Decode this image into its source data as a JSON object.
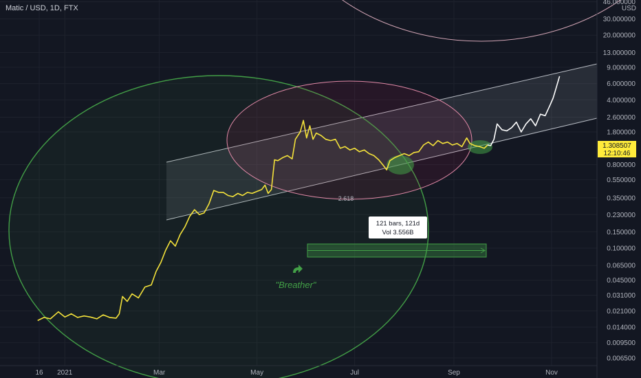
{
  "chart_data": {
    "type": "line",
    "title": "Matic / USD, 1D, FTX",
    "currency": "USD",
    "y_scale": "log",
    "ylim": [
      0.0055,
      55
    ],
    "y_ticks": [
      "46.000000",
      "30.000000",
      "20.000000",
      "13.000000",
      "9.000000",
      "6.000000",
      "4.000000",
      "2.600000",
      "1.800000",
      "0.800000",
      "0.550000",
      "0.350000",
      "0.230000",
      "0.150000",
      "0.100000",
      "0.065000",
      "0.045000",
      "0.031000",
      "0.021000",
      "0.014000",
      "0.009500",
      "0.006500"
    ],
    "x_ticks": [
      "16",
      "2021",
      "Mar",
      "May",
      "Jul",
      "Sep",
      "Nov"
    ],
    "last_price": {
      "value": "1.308507",
      "time": "12:10:46"
    },
    "colors": {
      "line_main": "#f5e33b",
      "line_recent": "#ffffff",
      "accent_green": "#43a047",
      "pink": "#e91e63",
      "label_bg": "#ffeb3b"
    },
    "series": [
      {
        "color": "#f5e33b",
        "points": [
          [
            "2020-12-15",
            0.0165
          ],
          [
            "2020-12-19",
            0.0178
          ],
          [
            "2020-12-23",
            0.0172
          ],
          [
            "2020-12-28",
            0.0205
          ],
          [
            "2021-01-01",
            0.018
          ],
          [
            "2021-01-05",
            0.0195
          ],
          [
            "2021-01-09",
            0.0178
          ],
          [
            "2021-01-13",
            0.0185
          ],
          [
            "2021-01-17",
            0.018
          ],
          [
            "2021-01-21",
            0.0172
          ],
          [
            "2021-01-25",
            0.019
          ],
          [
            "2021-01-29",
            0.0178
          ],
          [
            "2021-02-02",
            0.0175
          ],
          [
            "2021-02-04",
            0.0195
          ],
          [
            "2021-02-06",
            0.03
          ],
          [
            "2021-02-09",
            0.0265
          ],
          [
            "2021-02-12",
            0.032
          ],
          [
            "2021-02-16",
            0.029
          ],
          [
            "2021-02-20",
            0.038
          ],
          [
            "2021-02-24",
            0.04
          ],
          [
            "2021-02-27",
            0.056
          ],
          [
            "2021-03-02",
            0.07
          ],
          [
            "2021-03-05",
            0.095
          ],
          [
            "2021-03-08",
            0.12
          ],
          [
            "2021-03-11",
            0.105
          ],
          [
            "2021-03-14",
            0.14
          ],
          [
            "2021-03-17",
            0.17
          ],
          [
            "2021-03-20",
            0.22
          ],
          [
            "2021-03-23",
            0.26
          ],
          [
            "2021-03-26",
            0.23
          ],
          [
            "2021-03-29",
            0.24
          ],
          [
            "2021-04-01",
            0.3
          ],
          [
            "2021-04-04",
            0.42
          ],
          [
            "2021-04-07",
            0.4
          ],
          [
            "2021-04-10",
            0.4
          ],
          [
            "2021-04-13",
            0.37
          ],
          [
            "2021-04-16",
            0.36
          ],
          [
            "2021-04-19",
            0.39
          ],
          [
            "2021-04-22",
            0.37
          ],
          [
            "2021-04-25",
            0.4
          ],
          [
            "2021-04-28",
            0.39
          ],
          [
            "2021-05-01",
            0.41
          ],
          [
            "2021-05-04",
            0.43
          ],
          [
            "2021-05-06",
            0.48
          ],
          [
            "2021-05-08",
            0.39
          ],
          [
            "2021-05-10",
            0.43
          ],
          [
            "2021-05-12",
            0.9
          ],
          [
            "2021-05-14",
            0.88
          ],
          [
            "2021-05-17",
            0.95
          ],
          [
            "2021-05-20",
            1.0
          ],
          [
            "2021-05-23",
            0.92
          ],
          [
            "2021-05-25",
            1.5
          ],
          [
            "2021-05-28",
            1.8
          ],
          [
            "2021-05-30",
            2.4
          ],
          [
            "2021-06-01",
            1.55
          ],
          [
            "2021-06-03",
            2.1
          ],
          [
            "2021-06-05",
            1.5
          ],
          [
            "2021-06-07",
            1.75
          ],
          [
            "2021-06-10",
            1.65
          ],
          [
            "2021-06-13",
            1.5
          ],
          [
            "2021-06-16",
            1.45
          ],
          [
            "2021-06-19",
            1.5
          ],
          [
            "2021-06-22",
            1.2
          ],
          [
            "2021-06-25",
            1.25
          ],
          [
            "2021-06-28",
            1.15
          ],
          [
            "2021-07-01",
            1.2
          ],
          [
            "2021-07-04",
            1.1
          ],
          [
            "2021-07-07",
            1.15
          ],
          [
            "2021-07-10",
            1.05
          ],
          [
            "2021-07-13",
            1.0
          ],
          [
            "2021-07-16",
            0.9
          ],
          [
            "2021-07-19",
            0.78
          ],
          [
            "2021-07-21",
            0.7
          ],
          [
            "2021-07-23",
            0.88
          ],
          [
            "2021-07-26",
            0.95
          ],
          [
            "2021-07-29",
            1.0
          ],
          [
            "2021-08-01",
            1.05
          ],
          [
            "2021-08-04",
            1.0
          ],
          [
            "2021-08-07",
            1.08
          ],
          [
            "2021-08-10",
            1.1
          ],
          [
            "2021-08-13",
            1.3
          ],
          [
            "2021-08-16",
            1.4
          ],
          [
            "2021-08-19",
            1.28
          ],
          [
            "2021-08-22",
            1.45
          ],
          [
            "2021-08-25",
            1.35
          ],
          [
            "2021-08-28",
            1.4
          ],
          [
            "2021-08-31",
            1.3
          ],
          [
            "2021-09-03",
            1.35
          ],
          [
            "2021-09-06",
            1.25
          ],
          [
            "2021-09-09",
            1.55
          ],
          [
            "2021-09-11",
            1.35
          ],
          [
            "2021-09-14",
            1.28
          ],
          [
            "2021-09-17",
            1.25
          ],
          [
            "2021-09-20",
            1.2
          ],
          [
            "2021-09-22",
            1.3
          ]
        ]
      },
      {
        "color": "#ffffff",
        "points": [
          [
            "2021-09-22",
            1.3
          ],
          [
            "2021-09-24",
            1.28
          ],
          [
            "2021-09-26",
            1.5
          ],
          [
            "2021-09-28",
            2.2
          ],
          [
            "2021-10-01",
            1.9
          ],
          [
            "2021-10-04",
            1.85
          ],
          [
            "2021-10-07",
            2.0
          ],
          [
            "2021-10-10",
            2.3
          ],
          [
            "2021-10-13",
            1.8
          ],
          [
            "2021-10-16",
            2.2
          ],
          [
            "2021-10-19",
            2.5
          ],
          [
            "2021-10-22",
            2.1
          ],
          [
            "2021-10-25",
            2.8
          ],
          [
            "2021-10-28",
            2.7
          ],
          [
            "2021-10-31",
            3.5
          ],
          [
            "2021-11-02",
            4.2
          ],
          [
            "2021-11-04",
            5.5
          ],
          [
            "2021-11-06",
            7.2
          ]
        ]
      }
    ],
    "annotations": {
      "fib_label": "2.618",
      "breather_label": "\"Breather\"",
      "range_tooltip": {
        "line1": "121 bars, 121d",
        "line2": "Vol 3.556B"
      }
    }
  }
}
